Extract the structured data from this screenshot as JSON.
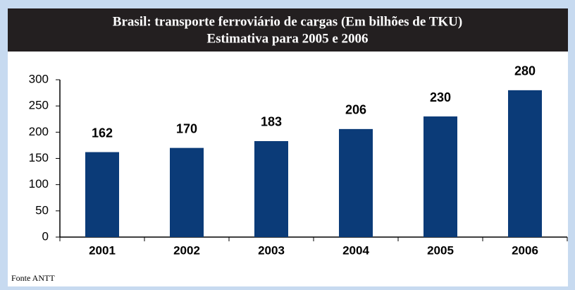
{
  "chart_data": {
    "type": "bar",
    "title": "Brasil: transporte ferroviário de cargas (Em bilhões de TKU)",
    "subtitle": "Estimativa para 2005 e 2006",
    "categories": [
      "2001",
      "2002",
      "2003",
      "2004",
      "2005",
      "2006"
    ],
    "values": [
      162,
      170,
      183,
      206,
      230,
      280
    ],
    "color": "#0b3b78",
    "ylim": [
      0,
      300
    ],
    "yticks": [
      0,
      50,
      100,
      150,
      200,
      250,
      300
    ],
    "grid": false,
    "source": "Fonte ANTT"
  }
}
